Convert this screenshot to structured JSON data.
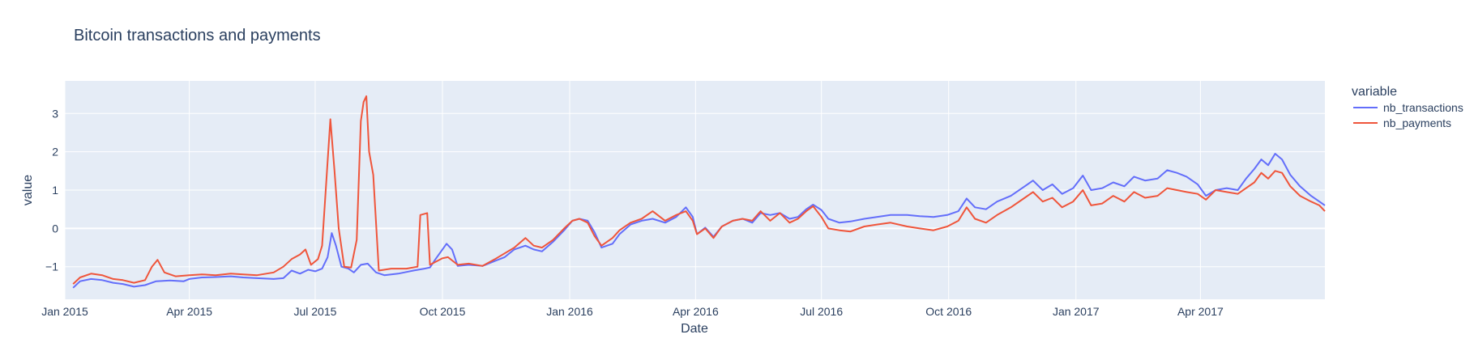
{
  "chart_data": {
    "type": "line",
    "title": "Bitcoin transactions and payments",
    "xlabel": "Date",
    "ylabel": "value",
    "xlim": [
      "2015-01-01",
      "2017-06-30"
    ],
    "ylim": [
      -1.85,
      3.85
    ],
    "x_ticks": [
      {
        "date": "2015-01-01",
        "label": "Jan 2015"
      },
      {
        "date": "2015-04-01",
        "label": "Apr 2015"
      },
      {
        "date": "2015-07-01",
        "label": "Jul 2015"
      },
      {
        "date": "2015-10-01",
        "label": "Oct 2015"
      },
      {
        "date": "2016-01-01",
        "label": "Jan 2016"
      },
      {
        "date": "2016-04-01",
        "label": "Apr 2016"
      },
      {
        "date": "2016-07-01",
        "label": "Jul 2016"
      },
      {
        "date": "2016-10-01",
        "label": "Oct 2016"
      },
      {
        "date": "2017-01-01",
        "label": "Jan 2017"
      },
      {
        "date": "2017-04-01",
        "label": "Apr 2017"
      }
    ],
    "y_ticks": [
      {
        "value": -1,
        "label": "−1"
      },
      {
        "value": 0,
        "label": "0"
      },
      {
        "value": 1,
        "label": "1"
      },
      {
        "value": 2,
        "label": "2"
      },
      {
        "value": 3,
        "label": "3"
      }
    ],
    "grid": true,
    "legend": {
      "title": "variable",
      "position": "right"
    },
    "plot_background": "#e5ecf6",
    "series": [
      {
        "name": "nb_transactions",
        "color": "#636efa",
        "points": [
          [
            "2015-01-07",
            -1.55
          ],
          [
            "2015-01-12",
            -1.38
          ],
          [
            "2015-01-20",
            -1.32
          ],
          [
            "2015-01-28",
            -1.35
          ],
          [
            "2015-02-05",
            -1.42
          ],
          [
            "2015-02-12",
            -1.45
          ],
          [
            "2015-02-20",
            -1.52
          ],
          [
            "2015-02-28",
            -1.48
          ],
          [
            "2015-03-08",
            -1.38
          ],
          [
            "2015-03-18",
            -1.36
          ],
          [
            "2015-03-28",
            -1.38
          ],
          [
            "2015-04-01",
            -1.32
          ],
          [
            "2015-04-10",
            -1.28
          ],
          [
            "2015-04-20",
            -1.27
          ],
          [
            "2015-05-01",
            -1.25
          ],
          [
            "2015-05-10",
            -1.28
          ],
          [
            "2015-05-20",
            -1.3
          ],
          [
            "2015-06-01",
            -1.32
          ],
          [
            "2015-06-08",
            -1.3
          ],
          [
            "2015-06-14",
            -1.1
          ],
          [
            "2015-06-20",
            -1.18
          ],
          [
            "2015-06-26",
            -1.08
          ],
          [
            "2015-07-01",
            -1.12
          ],
          [
            "2015-07-06",
            -1.05
          ],
          [
            "2015-07-10",
            -0.75
          ],
          [
            "2015-07-13",
            -0.12
          ],
          [
            "2015-07-16",
            -0.45
          ],
          [
            "2015-07-20",
            -1.0
          ],
          [
            "2015-07-25",
            -1.05
          ],
          [
            "2015-07-29",
            -1.15
          ],
          [
            "2015-08-03",
            -0.95
          ],
          [
            "2015-08-08",
            -0.92
          ],
          [
            "2015-08-14",
            -1.15
          ],
          [
            "2015-08-20",
            -1.22
          ],
          [
            "2015-08-30",
            -1.18
          ],
          [
            "2015-09-10",
            -1.1
          ],
          [
            "2015-09-18",
            -1.05
          ],
          [
            "2015-09-22",
            -1.02
          ],
          [
            "2015-09-26",
            -0.8
          ],
          [
            "2015-09-30",
            -0.6
          ],
          [
            "2015-10-04",
            -0.4
          ],
          [
            "2015-10-08",
            -0.55
          ],
          [
            "2015-10-12",
            -0.98
          ],
          [
            "2015-10-20",
            -0.95
          ],
          [
            "2015-10-30",
            -0.98
          ],
          [
            "2015-11-08",
            -0.85
          ],
          [
            "2015-11-15",
            -0.75
          ],
          [
            "2015-11-22",
            -0.55
          ],
          [
            "2015-11-30",
            -0.45
          ],
          [
            "2015-12-06",
            -0.55
          ],
          [
            "2015-12-12",
            -0.6
          ],
          [
            "2015-12-20",
            -0.35
          ],
          [
            "2015-12-28",
            -0.05
          ],
          [
            "2016-01-03",
            0.2
          ],
          [
            "2016-01-08",
            0.25
          ],
          [
            "2016-01-14",
            0.2
          ],
          [
            "2016-01-19",
            -0.1
          ],
          [
            "2016-01-24",
            -0.5
          ],
          [
            "2016-02-01",
            -0.4
          ],
          [
            "2016-02-06",
            -0.15
          ],
          [
            "2016-02-14",
            0.1
          ],
          [
            "2016-02-22",
            0.2
          ],
          [
            "2016-03-01",
            0.25
          ],
          [
            "2016-03-10",
            0.15
          ],
          [
            "2016-03-18",
            0.3
          ],
          [
            "2016-03-25",
            0.55
          ],
          [
            "2016-03-30",
            0.3
          ],
          [
            "2016-04-02",
            -0.15
          ],
          [
            "2016-04-08",
            0.02
          ],
          [
            "2016-04-14",
            -0.22
          ],
          [
            "2016-04-20",
            0.05
          ],
          [
            "2016-04-28",
            0.2
          ],
          [
            "2016-05-05",
            0.25
          ],
          [
            "2016-05-12",
            0.15
          ],
          [
            "2016-05-18",
            0.4
          ],
          [
            "2016-05-25",
            0.35
          ],
          [
            "2016-06-01",
            0.4
          ],
          [
            "2016-06-08",
            0.25
          ],
          [
            "2016-06-14",
            0.3
          ],
          [
            "2016-06-20",
            0.5
          ],
          [
            "2016-06-25",
            0.62
          ],
          [
            "2016-07-01",
            0.48
          ],
          [
            "2016-07-06",
            0.25
          ],
          [
            "2016-07-14",
            0.15
          ],
          [
            "2016-07-22",
            0.18
          ],
          [
            "2016-08-01",
            0.25
          ],
          [
            "2016-08-10",
            0.3
          ],
          [
            "2016-08-20",
            0.35
          ],
          [
            "2016-09-01",
            0.35
          ],
          [
            "2016-09-10",
            0.32
          ],
          [
            "2016-09-20",
            0.3
          ],
          [
            "2016-09-30",
            0.35
          ],
          [
            "2016-10-08",
            0.45
          ],
          [
            "2016-10-14",
            0.78
          ],
          [
            "2016-10-20",
            0.55
          ],
          [
            "2016-10-28",
            0.5
          ],
          [
            "2016-11-05",
            0.7
          ],
          [
            "2016-11-15",
            0.85
          ],
          [
            "2016-11-25",
            1.1
          ],
          [
            "2016-12-01",
            1.25
          ],
          [
            "2016-12-08",
            1.0
          ],
          [
            "2016-12-15",
            1.15
          ],
          [
            "2016-12-22",
            0.9
          ],
          [
            "2016-12-30",
            1.05
          ],
          [
            "2017-01-06",
            1.38
          ],
          [
            "2017-01-12",
            1.0
          ],
          [
            "2017-01-20",
            1.05
          ],
          [
            "2017-01-28",
            1.2
          ],
          [
            "2017-02-05",
            1.1
          ],
          [
            "2017-02-12",
            1.35
          ],
          [
            "2017-02-20",
            1.25
          ],
          [
            "2017-03-01",
            1.3
          ],
          [
            "2017-03-08",
            1.52
          ],
          [
            "2017-03-15",
            1.45
          ],
          [
            "2017-03-22",
            1.35
          ],
          [
            "2017-03-30",
            1.15
          ],
          [
            "2017-04-05",
            0.85
          ],
          [
            "2017-04-12",
            1.0
          ],
          [
            "2017-04-20",
            1.05
          ],
          [
            "2017-04-28",
            1.0
          ],
          [
            "2017-05-04",
            1.3
          ],
          [
            "2017-05-10",
            1.55
          ],
          [
            "2017-05-15",
            1.8
          ],
          [
            "2017-05-20",
            1.65
          ],
          [
            "2017-05-25",
            1.95
          ],
          [
            "2017-05-30",
            1.8
          ],
          [
            "2017-06-05",
            1.4
          ],
          [
            "2017-06-12",
            1.1
          ],
          [
            "2017-06-20",
            0.85
          ],
          [
            "2017-06-26",
            0.7
          ],
          [
            "2017-06-30",
            0.6
          ]
        ]
      },
      {
        "name": "nb_payments",
        "color": "#ef553b",
        "points": [
          [
            "2015-01-07",
            -1.45
          ],
          [
            "2015-01-12",
            -1.28
          ],
          [
            "2015-01-20",
            -1.18
          ],
          [
            "2015-01-28",
            -1.22
          ],
          [
            "2015-02-05",
            -1.32
          ],
          [
            "2015-02-12",
            -1.35
          ],
          [
            "2015-02-20",
            -1.42
          ],
          [
            "2015-02-28",
            -1.35
          ],
          [
            "2015-03-05",
            -1.0
          ],
          [
            "2015-03-09",
            -0.82
          ],
          [
            "2015-03-14",
            -1.15
          ],
          [
            "2015-03-22",
            -1.25
          ],
          [
            "2015-04-01",
            -1.22
          ],
          [
            "2015-04-10",
            -1.2
          ],
          [
            "2015-04-20",
            -1.22
          ],
          [
            "2015-05-01",
            -1.18
          ],
          [
            "2015-05-10",
            -1.2
          ],
          [
            "2015-05-20",
            -1.22
          ],
          [
            "2015-06-01",
            -1.15
          ],
          [
            "2015-06-08",
            -1.0
          ],
          [
            "2015-06-14",
            -0.8
          ],
          [
            "2015-06-20",
            -0.68
          ],
          [
            "2015-06-24",
            -0.55
          ],
          [
            "2015-06-28",
            -0.95
          ],
          [
            "2015-07-03",
            -0.8
          ],
          [
            "2015-07-06",
            -0.45
          ],
          [
            "2015-07-09",
            1.2
          ],
          [
            "2015-07-12",
            2.85
          ],
          [
            "2015-07-15",
            1.5
          ],
          [
            "2015-07-18",
            0.0
          ],
          [
            "2015-07-22",
            -1.0
          ],
          [
            "2015-07-27",
            -1.02
          ],
          [
            "2015-07-31",
            -0.3
          ],
          [
            "2015-08-03",
            2.8
          ],
          [
            "2015-08-05",
            3.3
          ],
          [
            "2015-08-07",
            3.45
          ],
          [
            "2015-08-09",
            2.0
          ],
          [
            "2015-08-12",
            1.4
          ],
          [
            "2015-08-16",
            -1.1
          ],
          [
            "2015-08-25",
            -1.05
          ],
          [
            "2015-09-05",
            -1.05
          ],
          [
            "2015-09-13",
            -1.0
          ],
          [
            "2015-09-15",
            0.35
          ],
          [
            "2015-09-20",
            0.4
          ],
          [
            "2015-09-22",
            -0.95
          ],
          [
            "2015-10-01",
            -0.78
          ],
          [
            "2015-10-05",
            -0.75
          ],
          [
            "2015-10-12",
            -0.95
          ],
          [
            "2015-10-20",
            -0.92
          ],
          [
            "2015-10-30",
            -0.98
          ],
          [
            "2015-11-08",
            -0.8
          ],
          [
            "2015-11-15",
            -0.65
          ],
          [
            "2015-11-22",
            -0.5
          ],
          [
            "2015-11-30",
            -0.25
          ],
          [
            "2015-12-06",
            -0.45
          ],
          [
            "2015-12-12",
            -0.5
          ],
          [
            "2015-12-20",
            -0.3
          ],
          [
            "2015-12-28",
            0.0
          ],
          [
            "2016-01-03",
            0.2
          ],
          [
            "2016-01-08",
            0.25
          ],
          [
            "2016-01-14",
            0.15
          ],
          [
            "2016-01-19",
            -0.2
          ],
          [
            "2016-01-24",
            -0.45
          ],
          [
            "2016-02-01",
            -0.25
          ],
          [
            "2016-02-06",
            -0.05
          ],
          [
            "2016-02-14",
            0.15
          ],
          [
            "2016-02-22",
            0.25
          ],
          [
            "2016-03-01",
            0.45
          ],
          [
            "2016-03-10",
            0.2
          ],
          [
            "2016-03-18",
            0.35
          ],
          [
            "2016-03-25",
            0.45
          ],
          [
            "2016-03-30",
            0.2
          ],
          [
            "2016-04-02",
            -0.15
          ],
          [
            "2016-04-08",
            0.0
          ],
          [
            "2016-04-14",
            -0.25
          ],
          [
            "2016-04-20",
            0.05
          ],
          [
            "2016-04-28",
            0.2
          ],
          [
            "2016-05-05",
            0.25
          ],
          [
            "2016-05-12",
            0.2
          ],
          [
            "2016-05-18",
            0.45
          ],
          [
            "2016-05-25",
            0.2
          ],
          [
            "2016-06-01",
            0.4
          ],
          [
            "2016-06-08",
            0.15
          ],
          [
            "2016-06-14",
            0.25
          ],
          [
            "2016-06-20",
            0.45
          ],
          [
            "2016-06-25",
            0.58
          ],
          [
            "2016-07-01",
            0.3
          ],
          [
            "2016-07-06",
            0.0
          ],
          [
            "2016-07-14",
            -0.05
          ],
          [
            "2016-07-22",
            -0.08
          ],
          [
            "2016-08-01",
            0.05
          ],
          [
            "2016-08-10",
            0.1
          ],
          [
            "2016-08-20",
            0.15
          ],
          [
            "2016-09-01",
            0.05
          ],
          [
            "2016-09-10",
            0.0
          ],
          [
            "2016-09-20",
            -0.05
          ],
          [
            "2016-09-30",
            0.05
          ],
          [
            "2016-10-08",
            0.2
          ],
          [
            "2016-10-14",
            0.55
          ],
          [
            "2016-10-20",
            0.25
          ],
          [
            "2016-10-28",
            0.15
          ],
          [
            "2016-11-05",
            0.35
          ],
          [
            "2016-11-15",
            0.55
          ],
          [
            "2016-11-25",
            0.8
          ],
          [
            "2016-12-01",
            0.95
          ],
          [
            "2016-12-08",
            0.7
          ],
          [
            "2016-12-15",
            0.8
          ],
          [
            "2016-12-22",
            0.55
          ],
          [
            "2016-12-30",
            0.7
          ],
          [
            "2017-01-06",
            1.0
          ],
          [
            "2017-01-12",
            0.6
          ],
          [
            "2017-01-20",
            0.65
          ],
          [
            "2017-01-28",
            0.85
          ],
          [
            "2017-02-05",
            0.7
          ],
          [
            "2017-02-12",
            0.95
          ],
          [
            "2017-02-20",
            0.8
          ],
          [
            "2017-03-01",
            0.85
          ],
          [
            "2017-03-08",
            1.05
          ],
          [
            "2017-03-15",
            1.0
          ],
          [
            "2017-03-22",
            0.95
          ],
          [
            "2017-03-30",
            0.9
          ],
          [
            "2017-04-05",
            0.75
          ],
          [
            "2017-04-12",
            1.0
          ],
          [
            "2017-04-20",
            0.95
          ],
          [
            "2017-04-28",
            0.9
          ],
          [
            "2017-05-04",
            1.05
          ],
          [
            "2017-05-10",
            1.2
          ],
          [
            "2017-05-15",
            1.45
          ],
          [
            "2017-05-20",
            1.3
          ],
          [
            "2017-05-25",
            1.5
          ],
          [
            "2017-05-30",
            1.45
          ],
          [
            "2017-06-05",
            1.1
          ],
          [
            "2017-06-12",
            0.85
          ],
          [
            "2017-06-20",
            0.7
          ],
          [
            "2017-06-26",
            0.6
          ],
          [
            "2017-06-30",
            0.45
          ]
        ]
      }
    ]
  }
}
